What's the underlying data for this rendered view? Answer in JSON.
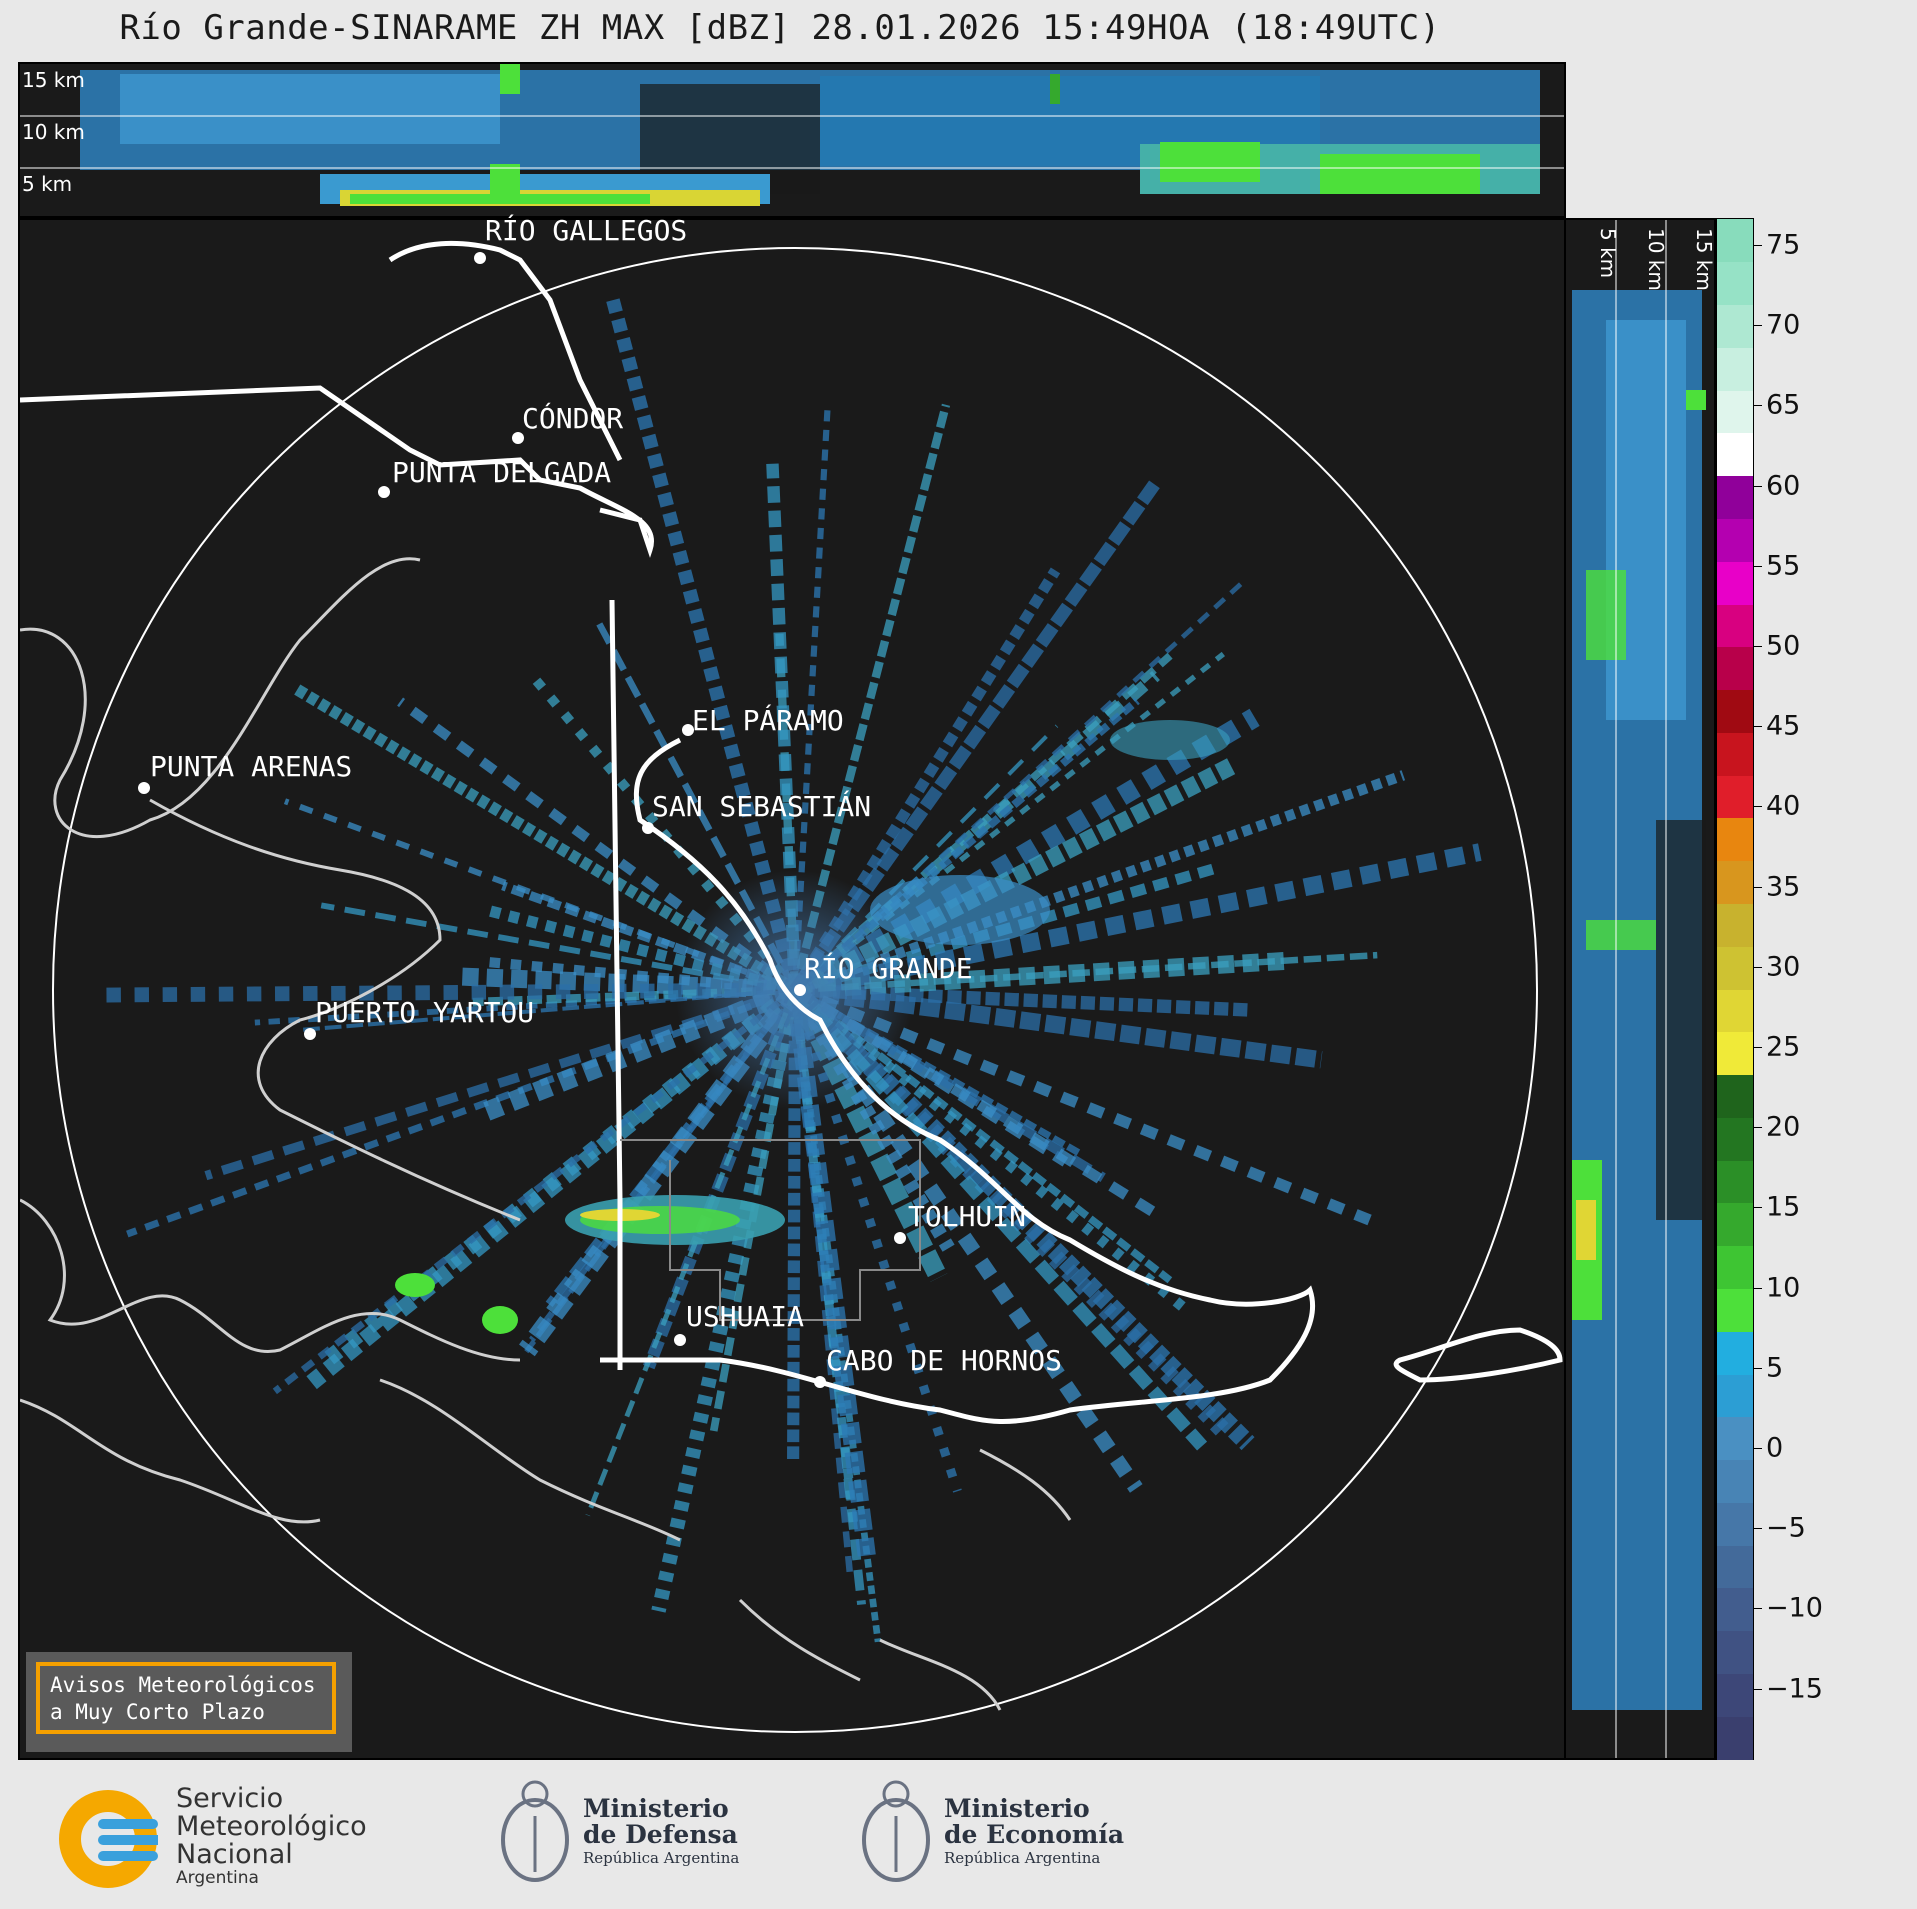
{
  "title": "Río Grande-SINARAME ZH MAX [dBZ] 28.01.2026 15:49HOA (18:49UTC)",
  "top_levels": [
    "15 km",
    "10 km",
    "5 km"
  ],
  "side_levels": [
    "5 km",
    "10 km",
    "15 km"
  ],
  "cities": {
    "rio_gallegos": "RÍO GALLEGOS",
    "condor": "CÓNDOR",
    "punta_delgada": "PUNTA DELGADA",
    "el_paramo": "EL PÁRAMO",
    "punta_arenas": "PUNTA ARENAS",
    "san_sebastian": "SAN SEBASTIÁN",
    "rio_grande": "RÍO GRANDE",
    "puerto_yartou": "PUERTO YARTOU",
    "tolhuin": "TOLHUIN",
    "ushuaia": "USHUAIA",
    "cabo_de_hornos": "CABO DE HORNOS"
  },
  "avisos": {
    "line1": "Avisos Meteorológicos",
    "line2": "a Muy Corto Plazo"
  },
  "colorbar": {
    "unit": "dBZ",
    "ticks": [
      "75",
      "70",
      "65",
      "60",
      "55",
      "50",
      "45",
      "40",
      "35",
      "30",
      "25",
      "20",
      "15",
      "10",
      "5",
      "0",
      "−5",
      "−10",
      "−15"
    ],
    "colors": [
      "#3a3f6e",
      "#3d4778",
      "#405283",
      "#425d8e",
      "#436a9a",
      "#4677a8",
      "#4884b5",
      "#4a90c2",
      "#2c9ed4",
      "#22aee0",
      "#4de03a",
      "#3ec533",
      "#35a92d",
      "#2b8f27",
      "#237621",
      "#1f641c",
      "#f0ea38",
      "#e0d634",
      "#cec232",
      "#c8b22e",
      "#d8961e",
      "#e8860f",
      "#e01e2a",
      "#c8141e",
      "#a00a12",
      "#b8004a",
      "#d80080",
      "#e800c8",
      "#b400b0",
      "#90009a",
      "#ffffff",
      "#dff5ec",
      "#c8efe0",
      "#aee8d2",
      "#96e2c6",
      "#88dcbc"
    ],
    "accent": "#f5a000"
  },
  "logos": {
    "smn": {
      "line1": "Servicio",
      "line2": "Meteorológico",
      "line3": "Nacional",
      "line4": "Argentina"
    },
    "defensa": {
      "line1": "Ministerio",
      "line2": "de Defensa",
      "line3": "República Argentina"
    },
    "economia": {
      "line1": "Ministerio",
      "line2": "de Economía",
      "line3": "República Argentina"
    }
  }
}
